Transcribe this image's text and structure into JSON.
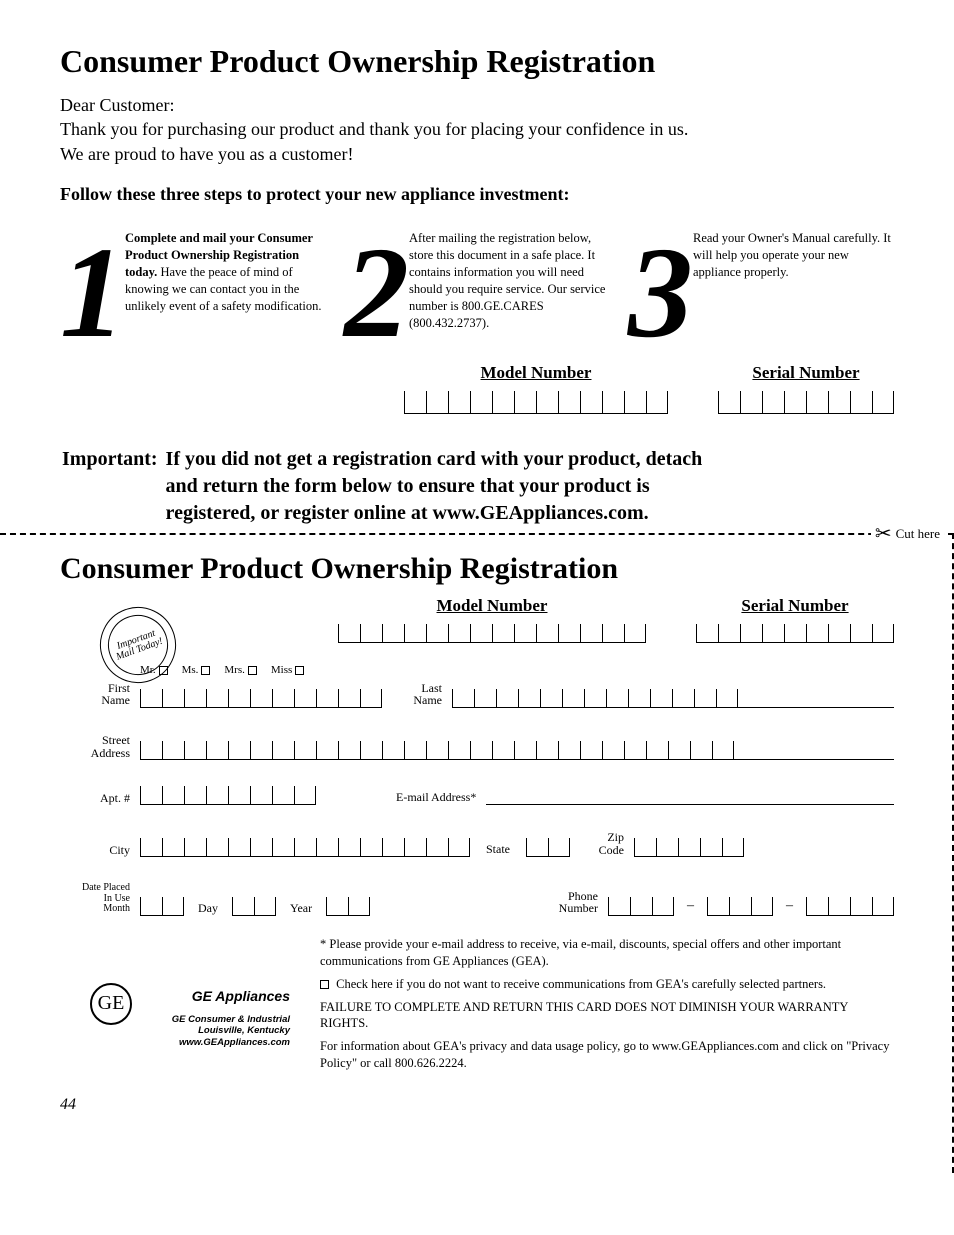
{
  "title": "Consumer Product Ownership Registration",
  "intro_greeting": "Dear Customer:",
  "intro_line1": "Thank you for purchasing our product and thank you for placing your confidence in us.",
  "intro_line2": "We are proud to have you as a customer!",
  "follow": "Follow these three steps to protect your new appliance investment:",
  "steps": {
    "n1": "1",
    "t1_bold": "Complete and mail your Consumer Product Ownership Registration today.",
    "t1_rest": " Have the peace of mind of knowing we can contact you in the unlikely event of a safety modification.",
    "n2": "2",
    "t2": "After mailing the registration below, store this document in a safe place. It contains information you will need should you require service. Our service number is 800.GE.CARES (800.432.2737).",
    "n3": "3",
    "t3": "Read your Owner's Manual carefully. It will help you operate your new appliance properly."
  },
  "model_label": "Model Number",
  "serial_label": "Serial Number",
  "model_boxcount": 12,
  "serial_boxcount": 8,
  "important_lead": "Important:",
  "important_body": "If you did not get a registration card with your product, detach and return the form below to ensure that your product is registered, or register online at www.GEAppliances.com.",
  "cut_label": "Cut here",
  "form_title": "Consumer Product Ownership Registration",
  "stamp_text": "Important Mail Today!",
  "form_model_boxcount": 14,
  "form_serial_boxcount": 9,
  "sal": {
    "mr": "Mr.",
    "ms": "Ms.",
    "mrs": "Mrs.",
    "miss": "Miss"
  },
  "labels": {
    "first_name": "First\nName",
    "last_name": "Last\nName",
    "street": "Street\nAddress",
    "apt": "Apt. #",
    "email": "E-mail Address*",
    "city": "City",
    "state": "State",
    "zip": "Zip\nCode",
    "date": "Date Placed\nIn Use\nMonth",
    "day": "Day",
    "year": "Year",
    "phone": "Phone\nNumber"
  },
  "boxcounts": {
    "first_name": 11,
    "last_name": 13,
    "street": 27,
    "apt": 8,
    "city": 15,
    "state": 2,
    "zip": 5,
    "month": 2,
    "day": 2,
    "year": 2,
    "phone_a": 3,
    "phone_b": 3,
    "phone_c": 4
  },
  "footnotes": {
    "email_note": "* Please provide your e-mail address to receive, via e-mail, discounts, special offers and other important communications from GE Appliances (GEA).",
    "optout": "Check here if you do not want to receive communications from GEA's carefully selected partners.",
    "warranty": "FAILURE TO COMPLETE AND RETURN THIS CARD DOES NOT DIMINISH YOUR WARRANTY RIGHTS.",
    "privacy": "For information about GEA's privacy and data usage policy, go to www.GEAppliances.com and click on \"Privacy Policy\" or call 800.626.2224."
  },
  "logo": {
    "brand": "GE Appliances",
    "addr1": "GE Consumer & Industrial",
    "addr2": "Louisville, Kentucky",
    "addr3": "www.GEAppliances.com"
  },
  "page_number": "44"
}
